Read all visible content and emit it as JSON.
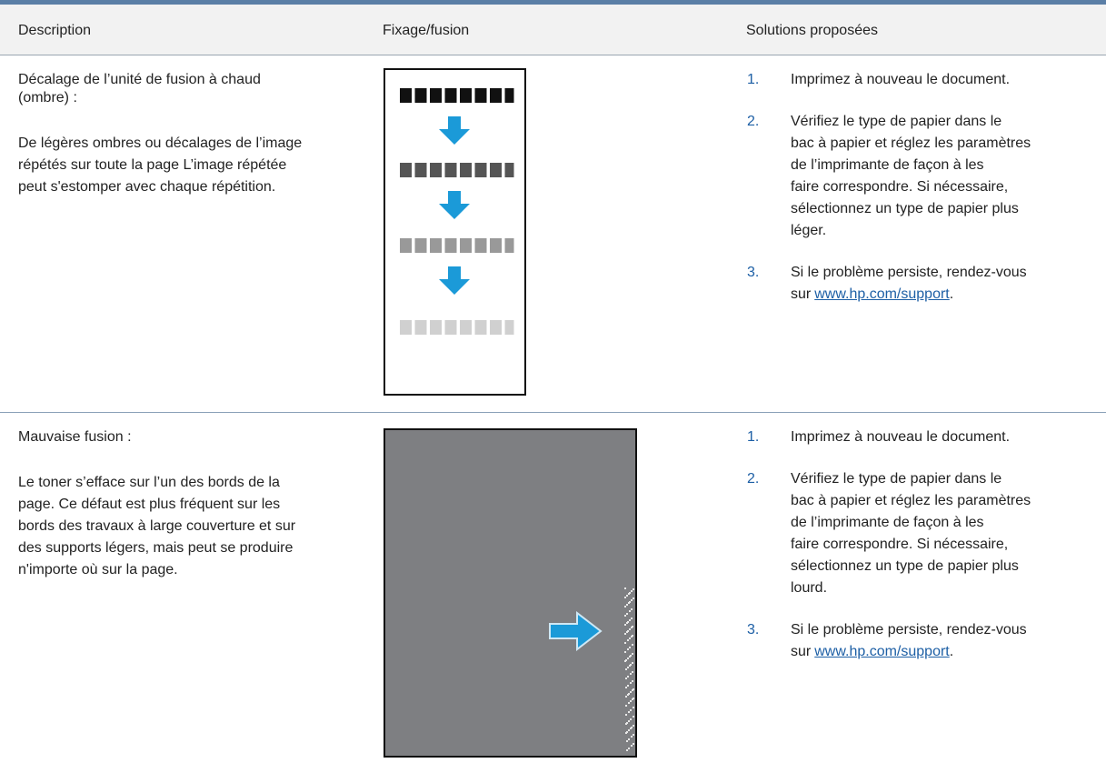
{
  "header": {
    "columns": [
      "Description",
      "Fixage/fusion",
      "Solutions proposées"
    ]
  },
  "rows": [
    {
      "title_lines": [
        "Décalage de l’unité de fusion à chaud",
        "(ombre) :"
      ],
      "body_lines": [
        "De légères ombres ou décalages de l’image",
        "répétés sur toute la page L’image répétée",
        "peut s'estomper avec chaque répétition."
      ],
      "solutions": [
        {
          "number": "1.",
          "lines": [
            "Imprimez à nouveau le document."
          ]
        },
        {
          "number": "2.",
          "lines": [
            "Vérifiez le type de papier dans le",
            "bac à papier et réglez les paramètres",
            "de l’imprimante de façon à les",
            "faire correspondre. Si nécessaire,",
            "sélectionnez un type de papier plus",
            "léger."
          ]
        },
        {
          "number": "3.",
          "lines": [
            "Si le problème persiste, rendez-vous"
          ],
          "link_before": "sur",
          "link": "www.hp.com/support",
          "link_after": "."
        }
      ]
    },
    {
      "title_lines": [
        "Mauvaise fusion :"
      ],
      "body_lines": [
        "Le toner s’efface sur l’un des bords de la",
        "page. Ce défaut est plus fréquent sur les",
        "bords des travaux à large couverture et sur",
        "des supports légers, mais peut se produire",
        "n'importe où sur la page."
      ],
      "solutions": [
        {
          "number": "1.",
          "lines": [
            "Imprimez à nouveau le document."
          ]
        },
        {
          "number": "2.",
          "lines": [
            "Vérifiez le type de papier dans le",
            "bac à papier et réglez les paramètres",
            "de l’imprimante de façon à les",
            "faire correspondre. Si nécessaire,",
            "sélectionnez un type de papier plus",
            "lourd."
          ]
        },
        {
          "number": "3.",
          "lines": [
            "Si le problème persiste, rendez-vous"
          ],
          "link_before": "sur",
          "link": "www.hp.com/support",
          "link_after": "."
        }
      ]
    }
  ]
}
